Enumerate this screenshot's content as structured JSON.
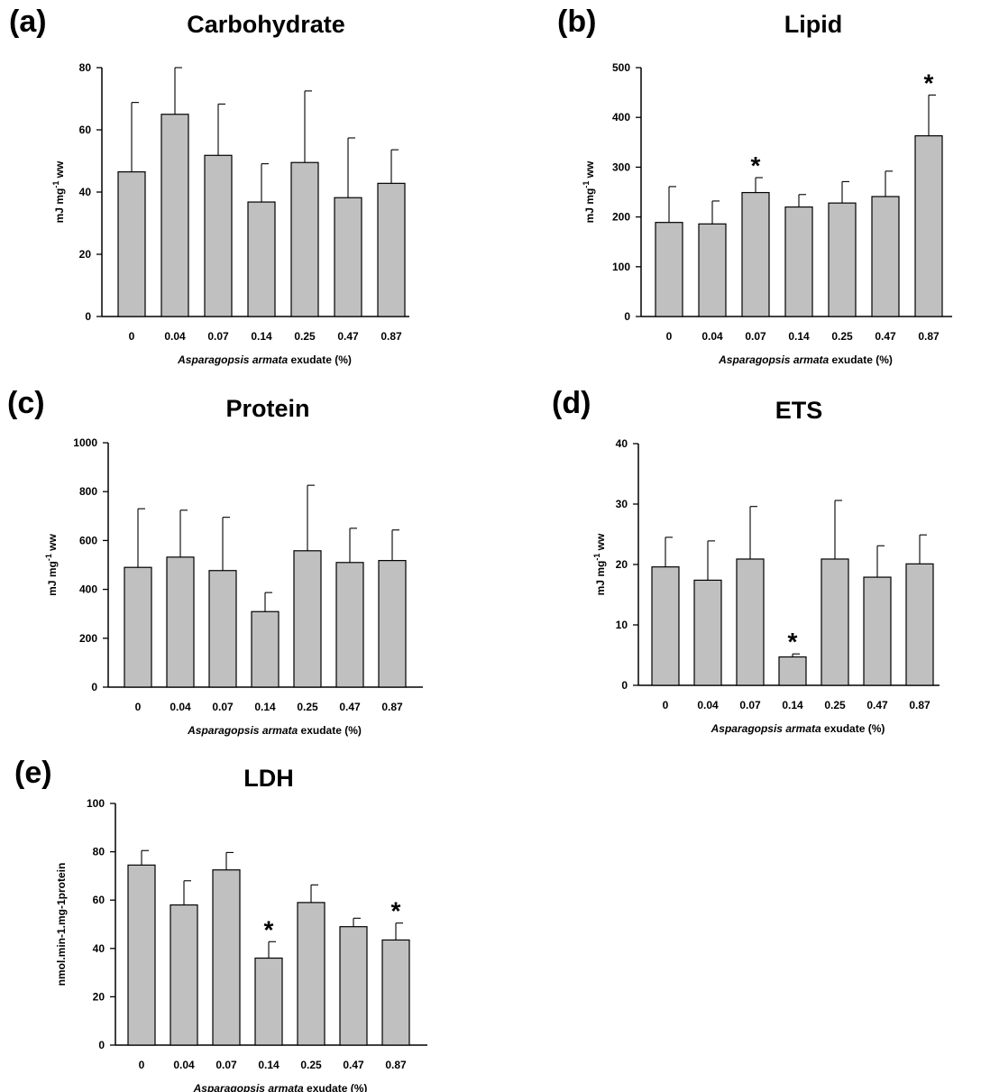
{
  "chart_data": [
    {
      "type": "bar",
      "panel": "(a)",
      "title": "Carbohydrate",
      "xlabel_italic": "Asparagopsis armata",
      "xlabel_rest": " exudate (%)",
      "ylabel": "mJ mg",
      "ylabel_sup": "-1",
      "ylabel_rest": " ww",
      "categories": [
        "0",
        "0.04",
        "0.07",
        "0.14",
        "0.25",
        "0.47",
        "0.87"
      ],
      "values": [
        46.5,
        65,
        51.8,
        36.8,
        49.5,
        38.2,
        42.8
      ],
      "errors": [
        22.3,
        15,
        16.5,
        12.3,
        23,
        19.2,
        10.8
      ],
      "significant": [
        false,
        false,
        false,
        false,
        false,
        false,
        false
      ],
      "ylim": [
        0,
        80
      ],
      "yticks": [
        0,
        20,
        40,
        60,
        80
      ]
    },
    {
      "type": "bar",
      "panel": "(b)",
      "title": "Lipid",
      "xlabel_italic": "Asparagopsis armata",
      "xlabel_rest": " exudate (%)",
      "ylabel": "mJ mg",
      "ylabel_sup": "-1",
      "ylabel_rest": " ww",
      "categories": [
        "0",
        "0.04",
        "0.07",
        "0.14",
        "0.25",
        "0.47",
        "0.87"
      ],
      "values": [
        189,
        186,
        249,
        220,
        228,
        241,
        363
      ],
      "errors": [
        72,
        46,
        30,
        25,
        43,
        51,
        82
      ],
      "significant": [
        false,
        false,
        true,
        false,
        false,
        false,
        true
      ],
      "ylim": [
        0,
        500
      ],
      "yticks": [
        0,
        100,
        200,
        300,
        400,
        500
      ]
    },
    {
      "type": "bar",
      "panel": "(c)",
      "title": "Protein",
      "xlabel_italic": "Asparagopsis armata",
      "xlabel_rest": " exudate (%)",
      "ylabel": "mJ mg",
      "ylabel_sup": "-1",
      "ylabel_rest": " ww",
      "categories": [
        "0",
        "0.04",
        "0.07",
        "0.14",
        "0.25",
        "0.47",
        "0.87"
      ],
      "values": [
        490,
        532,
        477,
        309,
        558,
        510,
        518
      ],
      "errors": [
        240,
        192,
        218,
        78,
        268,
        140,
        125
      ],
      "significant": [
        false,
        false,
        false,
        false,
        false,
        false,
        false
      ],
      "ylim": [
        0,
        1000
      ],
      "yticks": [
        0,
        200,
        400,
        600,
        800,
        1000
      ]
    },
    {
      "type": "bar",
      "panel": "(d)",
      "title": "ETS",
      "xlabel_italic": "Asparagopsis armata",
      "xlabel_rest": " exudate (%)",
      "ylabel": "mJ mg",
      "ylabel_sup": "-1",
      "ylabel_rest": " ww",
      "categories": [
        "0",
        "0.04",
        "0.07",
        "0.14",
        "0.25",
        "0.47",
        "0.87"
      ],
      "values": [
        19.6,
        17.4,
        20.9,
        4.7,
        20.9,
        17.9,
        20.1
      ],
      "errors": [
        4.9,
        6.5,
        8.7,
        0.5,
        9.7,
        5.2,
        4.8
      ],
      "significant": [
        false,
        false,
        false,
        true,
        false,
        false,
        false
      ],
      "ylim": [
        0,
        40
      ],
      "yticks": [
        0,
        10,
        20,
        30,
        40
      ]
    },
    {
      "type": "bar",
      "panel": "(e)",
      "title": "LDH",
      "xlabel_italic": "Asparagopsis armata",
      "xlabel_rest": " exudate (%)",
      "ylabel": "nmol.min-1.mg-1protein",
      "ylabel_sup": "",
      "ylabel_rest": "",
      "categories": [
        "0",
        "0.04",
        "0.07",
        "0.14",
        "0.25",
        "0.47",
        "0.87"
      ],
      "values": [
        74.5,
        58,
        72.5,
        36,
        59,
        49,
        43.5
      ],
      "errors": [
        6,
        10,
        7.2,
        6.8,
        7.3,
        3.5,
        7
      ],
      "significant": [
        false,
        false,
        false,
        true,
        false,
        false,
        true
      ],
      "ylim": [
        0,
        100
      ],
      "yticks": [
        0,
        20,
        40,
        60,
        80,
        100
      ]
    }
  ]
}
